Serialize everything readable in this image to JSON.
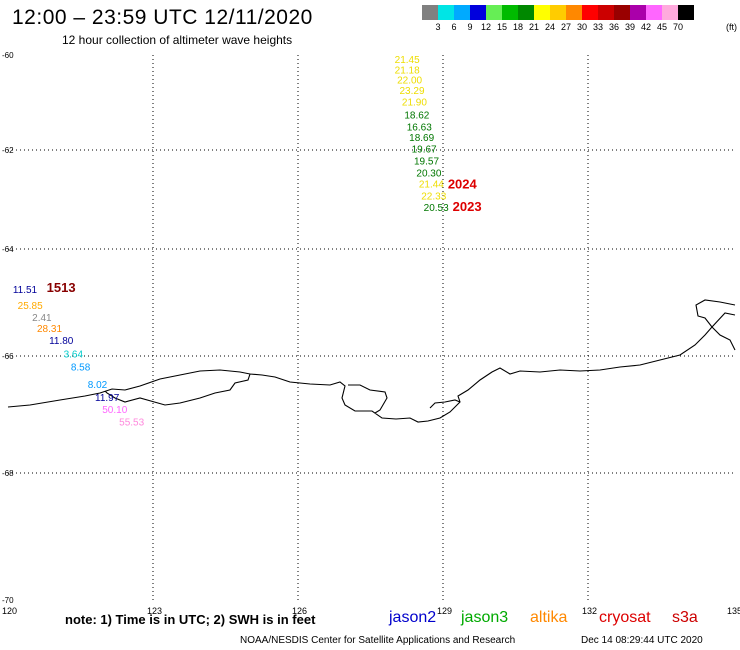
{
  "header": {
    "title": "12:00 – 23:59 UTC 12/11/2020",
    "subtitle": "12 hour collection of altimeter wave heights"
  },
  "colorbar": {
    "colors": [
      "#808080",
      "#00e5e5",
      "#00aaff",
      "#0000dd",
      "#66ee55",
      "#00bb00",
      "#008800",
      "#ffff00",
      "#ffcc00",
      "#ff8800",
      "#ff0000",
      "#cc0000",
      "#990000",
      "#aa00aa",
      "#ff66ff",
      "#ffaadd",
      "#000000"
    ],
    "labels": [
      "3",
      "6",
      "9",
      "12",
      "15",
      "18",
      "21",
      "24",
      "27",
      "30",
      "33",
      "36",
      "39",
      "42",
      "45",
      "70"
    ],
    "unit": "(ft)"
  },
  "axes": {
    "x_ticks": [
      "120",
      "123",
      "126",
      "129",
      "132",
      "135"
    ],
    "y_ticks": [
      "-60",
      "-62",
      "-64",
      "-66",
      "-68",
      "-70"
    ]
  },
  "obs_tracks": {
    "jason3": {
      "id_label": "2023",
      "values": [
        {
          "v": "21.45",
          "c": "#eedd00",
          "lon": 128.0,
          "lat": -60.08
        },
        {
          "v": "21.18",
          "c": "#eedd00",
          "lon": 128.0,
          "lat": -60.3
        },
        {
          "v": "22.00",
          "c": "#eedd00",
          "lon": 128.05,
          "lat": -60.52
        },
        {
          "v": "23.29",
          "c": "#eedd00",
          "lon": 128.1,
          "lat": -60.74
        },
        {
          "v": "21.90",
          "c": "#eedd00",
          "lon": 128.15,
          "lat": -60.98
        },
        {
          "v": "18.62",
          "c": "#007700",
          "lon": 128.2,
          "lat": -61.25
        },
        {
          "v": "16.63",
          "c": "#007700",
          "lon": 128.25,
          "lat": -61.5
        },
        {
          "v": "18.69",
          "c": "#007700",
          "lon": 128.3,
          "lat": -61.73
        },
        {
          "v": "19.67",
          "c": "#007700",
          "lon": 128.35,
          "lat": -61.97
        },
        {
          "v": "19.57",
          "c": "#007700",
          "lon": 128.4,
          "lat": -62.21
        },
        {
          "v": "20.30",
          "c": "#007700",
          "lon": 128.45,
          "lat": -62.45
        },
        {
          "v": "21.44",
          "c": "#eedd00",
          "lon": 128.5,
          "lat": -62.68
        },
        {
          "v": "22.33",
          "c": "#eedd00",
          "lon": 128.55,
          "lat": -62.92
        },
        {
          "v": "20.53",
          "c": "#007700",
          "lon": 128.6,
          "lat": -63.15
        }
      ]
    },
    "track_labels": [
      {
        "text": "2024",
        "c": "#dd0000",
        "lon": 129.1,
        "lat": -62.7
      },
      {
        "text": "2023",
        "c": "#dd0000",
        "lon": 129.2,
        "lat": -63.15
      }
    ],
    "cryosat": {
      "id_label": "1513",
      "id_color": "#880000",
      "values": [
        {
          "v": "11.51",
          "c": "#000099",
          "lon": 120.1,
          "lat": -64.75
        },
        {
          "v": "25.85",
          "c": "#ffaa00",
          "lon": 120.2,
          "lat": -65.05
        },
        {
          "v": "2.41",
          "c": "#888888",
          "lon": 120.5,
          "lat": -65.27
        },
        {
          "v": "28.31",
          "c": "#ff8800",
          "lon": 120.6,
          "lat": -65.48
        },
        {
          "v": "11.80",
          "c": "#000099",
          "lon": 120.85,
          "lat": -65.7
        },
        {
          "v": "3.64",
          "c": "#00cccc",
          "lon": 121.15,
          "lat": -65.95
        },
        {
          "v": "8.58",
          "c": "#0099ff",
          "lon": 121.3,
          "lat": -66.18
        },
        {
          "v": "8.02",
          "c": "#0099ff",
          "lon": 121.65,
          "lat": -66.48
        },
        {
          "v": "11.97",
          "c": "#000099",
          "lon": 121.8,
          "lat": -66.7
        },
        {
          "v": "50.10",
          "c": "#ff66ff",
          "lon": 121.95,
          "lat": -66.91
        },
        {
          "v": "55.53",
          "c": "#ff88dd",
          "lon": 122.3,
          "lat": -67.12
        }
      ],
      "id_pos": {
        "lon": 120.8,
        "lat": -64.73
      }
    }
  },
  "legend": {
    "note": "note: 1) Time is in UTC; 2) SWH is in feet",
    "satellites": [
      {
        "name": "jason2",
        "color": "#0000cc"
      },
      {
        "name": "jason3",
        "color": "#00aa00"
      },
      {
        "name": "altika",
        "color": "#ff8800"
      },
      {
        "name": "cryosat",
        "color": "#dd0000"
      },
      {
        "name": "s3a",
        "color": "#cc0000"
      }
    ]
  },
  "footer": {
    "credit": "NOAA/NESDIS Center for Satellite Applications and Research",
    "timestamp": "Dec 14 08:29:44 UTC 2020"
  }
}
